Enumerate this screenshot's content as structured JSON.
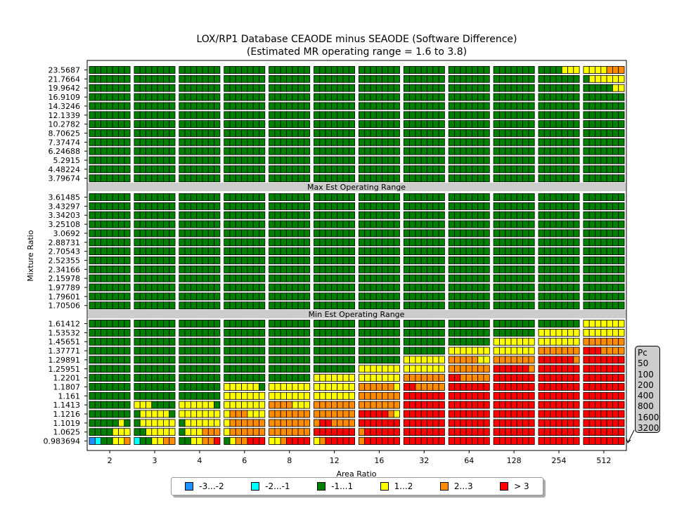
{
  "chart_data": {
    "type": "heatmap",
    "title": "LOX/RP1 Database CEAODE minus SEAODE (Software Difference)",
    "subtitle": "(Estimated MR operating range = 1.6 to 3.8)",
    "xlabel": "Area Ratio",
    "ylabel": "Mixture Ratio",
    "area_ratios": [
      "2",
      "3",
      "4",
      "6",
      "8",
      "12",
      "16",
      "32",
      "64",
      "128",
      "254",
      "512"
    ],
    "mixture_ratios_top": [
      "23.5687",
      "21.7664",
      "19.9642",
      "16.9109",
      "14.3246",
      "12.1339",
      "10.2782",
      "8.70625",
      "7.37474",
      "6.24688",
      "5.2915",
      "4.48224",
      "3.79674"
    ],
    "mixture_ratios_mid": [
      "3.61485",
      "3.43297",
      "3.34203",
      "3.25108",
      "3.0692",
      "2.88731",
      "2.70543",
      "2.52355",
      "2.34166",
      "2.15978",
      "1.97789",
      "1.79601",
      "1.70506"
    ],
    "mixture_ratios_bot": [
      "1.61412",
      "1.53532",
      "1.45651",
      "1.37771",
      "1.29891",
      "1.25951",
      "1.2201",
      "1.1807",
      "1.161",
      "1.1413",
      "1.1216",
      "1.1019",
      "1.0625",
      "0.983694"
    ],
    "band_max": "Max Est Operating Range",
    "band_min": "Min Est Operating Range",
    "pressures_label": "Pc",
    "pressures": [
      "50",
      "100",
      "200",
      "400",
      "800",
      "1600",
      "3200"
    ],
    "legend": [
      {
        "label": "-3...-2",
        "color": "#1e90ff"
      },
      {
        "label": "-2...-1",
        "color": "#00ffff"
      },
      {
        "label": "-1...1",
        "color": "#008000"
      },
      {
        "label": "1...2",
        "color": "#ffff00"
      },
      {
        "label": "2...3",
        "color": "#ff8c00"
      },
      {
        "label": "> 3",
        "color": "#ff0000"
      }
    ],
    "category_codes": {
      "0": "-3...-2",
      "1": "-2...-1",
      "2": "-1...1",
      "3": "1...2",
      "4": "2...3",
      "5": "> 3"
    },
    "rows_top": [
      [
        "2222222",
        "2222222",
        "2222222",
        "2222222",
        "2222222",
        "2222222",
        "2222222",
        "2222222",
        "2222222",
        "2222222",
        "2222333",
        "3333444"
      ],
      [
        "2222222",
        "2222222",
        "2222222",
        "2222222",
        "2222222",
        "2222222",
        "2222222",
        "2222222",
        "2222222",
        "2222222",
        "2222222",
        "2333333"
      ],
      [
        "2222222",
        "2222222",
        "2222222",
        "2222222",
        "2222222",
        "2222222",
        "2222222",
        "2222222",
        "2222222",
        "2222222",
        "2222222",
        "2222233"
      ],
      [
        "2222222",
        "2222222",
        "2222222",
        "2222222",
        "2222222",
        "2222222",
        "2222222",
        "2222222",
        "2222222",
        "2222222",
        "2222222",
        "2222222"
      ],
      [
        "2222222",
        "2222222",
        "2222222",
        "2222222",
        "2222222",
        "2222222",
        "2222222",
        "2222222",
        "2222222",
        "2222222",
        "2222222",
        "2222222"
      ],
      [
        "2222222",
        "2222222",
        "2222222",
        "2222222",
        "2222222",
        "2222222",
        "2222222",
        "2222222",
        "2222222",
        "2222222",
        "2222222",
        "2222222"
      ],
      [
        "2222222",
        "2222222",
        "2222222",
        "2222222",
        "2222222",
        "2222222",
        "2222222",
        "2222222",
        "2222222",
        "2222222",
        "2222222",
        "2222222"
      ],
      [
        "2222222",
        "2222222",
        "2222222",
        "2222222",
        "2222222",
        "2222222",
        "2222222",
        "2222222",
        "2222222",
        "2222222",
        "2222222",
        "2222222"
      ],
      [
        "2222222",
        "2222222",
        "2222222",
        "2222222",
        "2222222",
        "2222222",
        "2222222",
        "2222222",
        "2222222",
        "2222222",
        "2222222",
        "2222222"
      ],
      [
        "2222222",
        "2222222",
        "2222222",
        "2222222",
        "2222222",
        "2222222",
        "2222222",
        "2222222",
        "2222222",
        "2222222",
        "2222222",
        "2222222"
      ],
      [
        "2222222",
        "2222222",
        "2222222",
        "2222222",
        "2222222",
        "2222222",
        "2222222",
        "2222222",
        "2222222",
        "2222222",
        "2222222",
        "2222222"
      ],
      [
        "2222222",
        "2222222",
        "2222222",
        "2222222",
        "2222222",
        "2222222",
        "2222222",
        "2222222",
        "2222222",
        "2222222",
        "2222222",
        "2222222"
      ],
      [
        "2222222",
        "2222222",
        "2222222",
        "2222222",
        "2222222",
        "2222222",
        "2222222",
        "2222222",
        "2222222",
        "2222222",
        "2222222",
        "2222222"
      ]
    ],
    "rows_mid_all": "2222222",
    "rows_bot": [
      [
        "2222222",
        "2222222",
        "2222222",
        "2222222",
        "2222222",
        "2222222",
        "2222222",
        "2222222",
        "2222222",
        "2222222",
        "2222222",
        "3333333"
      ],
      [
        "2222222",
        "2222222",
        "2222222",
        "2222222",
        "2222222",
        "2222222",
        "2222222",
        "2222222",
        "2222222",
        "2222222",
        "3333333",
        "3333333"
      ],
      [
        "2222222",
        "2222222",
        "2222222",
        "2222222",
        "2222222",
        "2222222",
        "2222222",
        "2222222",
        "2222222",
        "3333333",
        "3333333",
        "4444444"
      ],
      [
        "2222222",
        "2222222",
        "2222222",
        "2222222",
        "2222222",
        "2222222",
        "2222222",
        "2222222",
        "3333333",
        "3333333",
        "4444444",
        "5554444"
      ],
      [
        "2222222",
        "2222222",
        "2222222",
        "2222222",
        "2222222",
        "2222222",
        "2222222",
        "3333333",
        "4444433",
        "4444444",
        "5555554",
        "5555555"
      ],
      [
        "2222222",
        "2222222",
        "2222222",
        "2222222",
        "2222222",
        "2222222",
        "3333333",
        "3333333",
        "4444444",
        "5555554",
        "5555555",
        "5555555"
      ],
      [
        "2222222",
        "2222222",
        "2222222",
        "2222222",
        "2222222",
        "3333333",
        "3333333",
        "4444444",
        "5544444",
        "5555555",
        "5555555",
        "5555555"
      ],
      [
        "2222222",
        "2222222",
        "2222222",
        "3333332",
        "3333333",
        "3333333",
        "4444443",
        "5544444",
        "5555555",
        "5555555",
        "5555555",
        "5555555"
      ],
      [
        "2222222",
        "2222222",
        "2222222",
        "3333333",
        "3333333",
        "3333333",
        "4444444",
        "5555555",
        "5555555",
        "5555555",
        "5555555",
        "5555555"
      ],
      [
        "2222222",
        "3332222",
        "3333332",
        "3333333",
        "4444333",
        "4444444",
        "4444444",
        "5555555",
        "5555555",
        "5555555",
        "5555555",
        "5555555"
      ],
      [
        "2222222",
        "2333332",
        "3333333",
        "3444333",
        "4444444",
        "4444444",
        "5555543",
        "5555555",
        "5555555",
        "5555555",
        "5555555",
        "5555555"
      ],
      [
        "2222232",
        "2333333",
        "2333333",
        "3444444",
        "4444444",
        "4554444",
        "5555555",
        "5555555",
        "5555555",
        "5555555",
        "5555555",
        "5555555"
      ],
      [
        "2222333",
        "2233333",
        "2333444",
        "3444444",
        "4444444",
        "5555555",
        "4555555",
        "5555555",
        "5555555",
        "5555555",
        "5555555",
        "5555555"
      ],
      [
        "0122334",
        "1223344",
        "2233445",
        "2344555",
        "3345555",
        "3455555",
        "4555555",
        "5555555",
        "5555555",
        "5555555",
        "5555555",
        "5555555"
      ]
    ]
  }
}
